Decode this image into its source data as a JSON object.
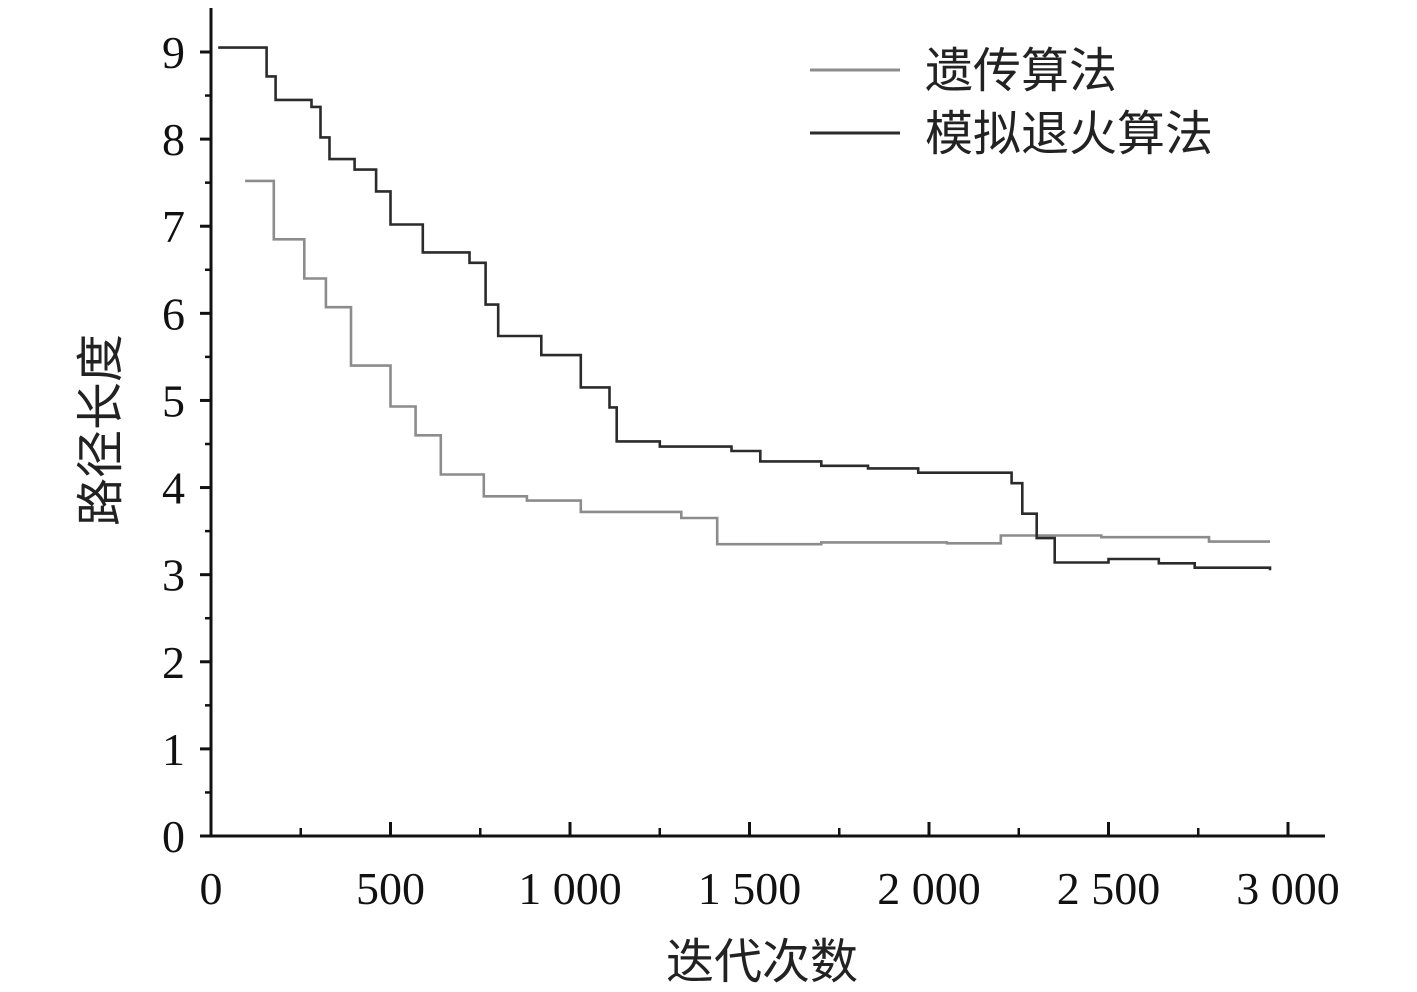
{
  "chart_data": {
    "type": "line",
    "title": "",
    "xlabel": "迭代次数",
    "ylabel": "路径长度",
    "xlim": [
      0,
      3000
    ],
    "ylim": [
      0,
      9
    ],
    "x_ticks": [
      0,
      500,
      1000,
      1500,
      2000,
      2500,
      3000
    ],
    "x_tick_labels": [
      "0",
      "500",
      "1 000",
      "1 500",
      "2 000",
      "2 500",
      "3 000"
    ],
    "y_ticks": [
      0,
      1,
      2,
      3,
      4,
      5,
      6,
      7,
      8,
      9
    ],
    "y_tick_labels": [
      "0",
      "1",
      "2",
      "3",
      "4",
      "5",
      "6",
      "7",
      "8",
      "9"
    ],
    "grid": false,
    "legend_position": "top-right",
    "step": true,
    "series": [
      {
        "name": "遗传算法",
        "color": "#8c8c8c",
        "x": [
          95,
          175,
          260,
          320,
          390,
          500,
          570,
          640,
          760,
          880,
          1030,
          1310,
          1410,
          1700,
          2050,
          2200,
          2480,
          2780,
          2950
        ],
        "y": [
          7.52,
          6.85,
          6.4,
          6.07,
          5.4,
          4.93,
          4.6,
          4.15,
          3.9,
          3.85,
          3.72,
          3.65,
          3.35,
          3.37,
          3.36,
          3.45,
          3.43,
          3.38,
          3.38
        ]
      },
      {
        "name": "模拟退火算法",
        "color": "#2b2b2b",
        "x": [
          20,
          155,
          180,
          280,
          305,
          330,
          400,
          460,
          500,
          590,
          720,
          765,
          800,
          920,
          1030,
          1110,
          1130,
          1250,
          1450,
          1530,
          1700,
          1830,
          1970,
          2230,
          2260,
          2300,
          2350,
          2500,
          2640,
          2740,
          2950
        ],
        "y": [
          9.05,
          8.72,
          8.45,
          8.37,
          8.02,
          7.77,
          7.65,
          7.4,
          7.02,
          6.7,
          6.58,
          6.1,
          5.74,
          5.52,
          5.15,
          4.92,
          4.53,
          4.47,
          4.42,
          4.3,
          4.25,
          4.22,
          4.17,
          4.05,
          3.7,
          3.42,
          3.14,
          3.18,
          3.13,
          3.08,
          3.05
        ]
      }
    ]
  }
}
